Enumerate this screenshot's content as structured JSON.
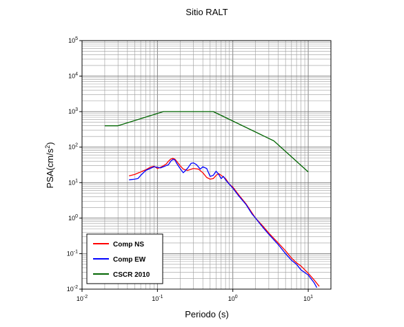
{
  "chart_data": {
    "type": "line",
    "title": "Sitio RALT",
    "xlabel": "Periodo (s)",
    "ylabel": "PSA(cm/s²)",
    "x_scale": "log",
    "y_scale": "log",
    "xlim": [
      0.01,
      20
    ],
    "ylim": [
      0.01,
      100000
    ],
    "x_ticks": [
      {
        "value": 0.01,
        "base": "10",
        "exp": "-2"
      },
      {
        "value": 0.1,
        "base": "10",
        "exp": "-1"
      },
      {
        "value": 1,
        "base": "10",
        "exp": "0"
      },
      {
        "value": 10,
        "base": "10",
        "exp": "1"
      }
    ],
    "y_ticks": [
      {
        "value": 0.01,
        "base": "10",
        "exp": "-2"
      },
      {
        "value": 0.1,
        "base": "10",
        "exp": "-1"
      },
      {
        "value": 1,
        "base": "10",
        "exp": "0"
      },
      {
        "value": 10,
        "base": "10",
        "exp": "1"
      },
      {
        "value": 100,
        "base": "10",
        "exp": "2"
      },
      {
        "value": 1000,
        "base": "10",
        "exp": "3"
      },
      {
        "value": 10000,
        "base": "10",
        "exp": "4"
      },
      {
        "value": 100000,
        "base": "10",
        "exp": "5"
      }
    ],
    "grid": true,
    "legend_position": "bottom-left",
    "series": [
      {
        "name": "Comp NS",
        "color": "#ff0000",
        "points": [
          [
            0.042,
            15.5
          ],
          [
            0.05,
            17
          ],
          [
            0.06,
            20
          ],
          [
            0.07,
            23
          ],
          [
            0.08,
            27
          ],
          [
            0.09,
            29
          ],
          [
            0.1,
            25
          ],
          [
            0.11,
            27
          ],
          [
            0.12,
            30
          ],
          [
            0.13,
            33
          ],
          [
            0.14,
            40
          ],
          [
            0.15,
            46
          ],
          [
            0.16,
            48
          ],
          [
            0.17,
            46
          ],
          [
            0.18,
            40
          ],
          [
            0.2,
            30
          ],
          [
            0.22,
            24
          ],
          [
            0.25,
            22
          ],
          [
            0.3,
            25
          ],
          [
            0.35,
            24
          ],
          [
            0.4,
            19
          ],
          [
            0.45,
            14
          ],
          [
            0.5,
            12.5
          ],
          [
            0.55,
            13
          ],
          [
            0.6,
            16
          ],
          [
            0.65,
            18
          ],
          [
            0.7,
            16
          ],
          [
            0.8,
            13
          ],
          [
            0.9,
            9
          ],
          [
            1.0,
            7.5
          ],
          [
            1.2,
            4.5
          ],
          [
            1.5,
            2.5
          ],
          [
            1.8,
            1.4
          ],
          [
            2.0,
            1.0
          ],
          [
            2.5,
            0.6
          ],
          [
            3.0,
            0.38
          ],
          [
            4.0,
            0.2
          ],
          [
            5.0,
            0.12
          ],
          [
            6.0,
            0.075
          ],
          [
            7.0,
            0.055
          ],
          [
            8.0,
            0.045
          ],
          [
            10.0,
            0.028
          ],
          [
            12.0,
            0.018
          ],
          [
            14.0,
            0.012
          ]
        ]
      },
      {
        "name": "Comp EW",
        "color": "#0000ff",
        "points": [
          [
            0.042,
            12
          ],
          [
            0.05,
            12.5
          ],
          [
            0.055,
            13
          ],
          [
            0.06,
            16
          ],
          [
            0.07,
            22
          ],
          [
            0.08,
            25
          ],
          [
            0.09,
            28
          ],
          [
            0.1,
            27
          ],
          [
            0.11,
            26
          ],
          [
            0.12,
            28
          ],
          [
            0.13,
            30
          ],
          [
            0.14,
            32
          ],
          [
            0.15,
            40
          ],
          [
            0.16,
            45
          ],
          [
            0.17,
            44
          ],
          [
            0.18,
            35
          ],
          [
            0.2,
            25
          ],
          [
            0.22,
            19
          ],
          [
            0.25,
            25
          ],
          [
            0.28,
            35
          ],
          [
            0.3,
            36
          ],
          [
            0.33,
            32
          ],
          [
            0.37,
            24
          ],
          [
            0.4,
            28
          ],
          [
            0.45,
            25
          ],
          [
            0.5,
            15
          ],
          [
            0.55,
            16
          ],
          [
            0.6,
            21
          ],
          [
            0.65,
            17
          ],
          [
            0.7,
            13
          ],
          [
            0.75,
            15
          ],
          [
            0.8,
            12
          ],
          [
            0.9,
            9
          ],
          [
            1.0,
            7
          ],
          [
            1.2,
            4.2
          ],
          [
            1.5,
            2.4
          ],
          [
            1.8,
            1.3
          ],
          [
            2.0,
            1.0
          ],
          [
            2.5,
            0.55
          ],
          [
            3.0,
            0.35
          ],
          [
            4.0,
            0.18
          ],
          [
            5.0,
            0.1
          ],
          [
            6.0,
            0.065
          ],
          [
            7.0,
            0.05
          ],
          [
            8.0,
            0.035
          ],
          [
            10.0,
            0.025
          ],
          [
            12.0,
            0.015
          ],
          [
            13.0,
            0.011
          ]
        ]
      },
      {
        "name": "CSCR 2010",
        "color": "#006400",
        "points": [
          [
            0.02,
            400
          ],
          [
            0.03,
            400
          ],
          [
            0.12,
            1000
          ],
          [
            0.55,
            1000
          ],
          [
            3.5,
            150
          ],
          [
            10.0,
            20
          ]
        ]
      }
    ]
  }
}
